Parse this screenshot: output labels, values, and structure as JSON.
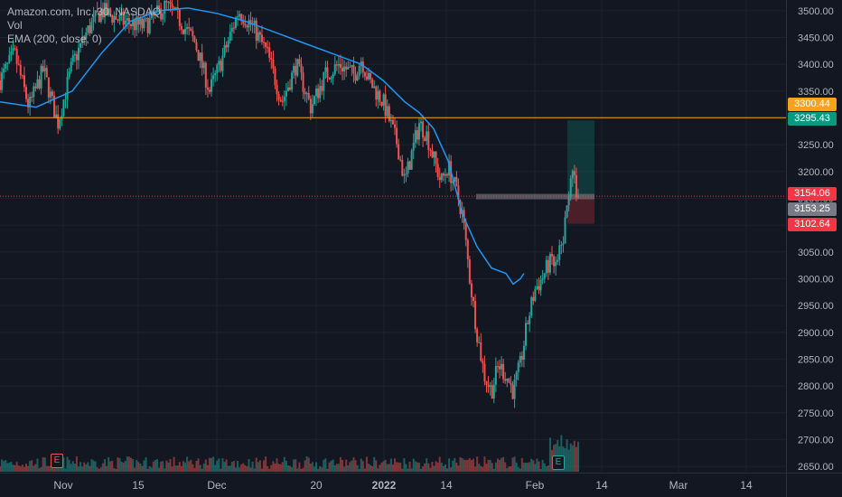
{
  "legend": {
    "symbol": "Amazon.com, Inc, 30, NASDAQ",
    "vol": "Vol",
    "ema": "EMA (200, close, 0)"
  },
  "price_axis": {
    "ticks": [
      "3500.00",
      "3450.00",
      "3400.00",
      "3350.00",
      "3300.00",
      "3250.00",
      "3200.00",
      "3150.00",
      "3100.00",
      "3050.00",
      "3000.00",
      "2950.00",
      "2900.00",
      "2850.00",
      "2800.00",
      "2750.00",
      "2700.00",
      "2650.00"
    ],
    "tick_values": [
      3500,
      3450,
      3400,
      3350,
      3300,
      3250,
      3200,
      3150,
      3100,
      3050,
      3000,
      2950,
      2900,
      2850,
      2800,
      2750,
      2700,
      2650
    ]
  },
  "price_tags": {
    "alert": "3300.44",
    "target": "3295.43",
    "last": "3154.06",
    "entry": "3153.25",
    "stop": "3102.64"
  },
  "time_axis": {
    "labels": [
      "Nov",
      "15",
      "Dec",
      "20",
      "2022",
      "14",
      "Feb",
      "14",
      "Mar",
      "14"
    ],
    "bold_label": "2022"
  },
  "colors": {
    "background": "#131722",
    "up": "#26a69a",
    "down": "#ef5350",
    "ema": "#2196f3",
    "horizontal_line": "#f7a21b",
    "alert_tag": "#f7a21b",
    "target_tag": "#089981",
    "last_tag": "#f23645",
    "entry_tag": "#787b86",
    "stop_tag": "#f23645"
  },
  "earnings_badges": [
    "E",
    "E"
  ],
  "chart_data": {
    "type": "candlestick",
    "title": "Amazon.com, Inc, 30, NASDAQ",
    "ylim": [
      2640,
      3520
    ],
    "indicators": [
      "Vol",
      "EMA (200, close, 0)"
    ],
    "horizontal_line": 3300.44,
    "position": {
      "entry": 3153.25,
      "target": 3295.43,
      "stop": 3102.64
    },
    "last_price": 3154.06,
    "price_path": [
      [
        0.0,
        3370
      ],
      [
        0.02,
        3420
      ],
      [
        0.04,
        3320
      ],
      [
        0.06,
        3390
      ],
      [
        0.08,
        3290
      ],
      [
        0.1,
        3400
      ],
      [
        0.12,
        3460
      ],
      [
        0.14,
        3500
      ],
      [
        0.17,
        3480
      ],
      [
        0.2,
        3470
      ],
      [
        0.23,
        3510
      ],
      [
        0.25,
        3480
      ],
      [
        0.27,
        3440
      ],
      [
        0.29,
        3350
      ],
      [
        0.31,
        3420
      ],
      [
        0.33,
        3500
      ],
      [
        0.35,
        3470
      ],
      [
        0.37,
        3420
      ],
      [
        0.39,
        3330
      ],
      [
        0.41,
        3400
      ],
      [
        0.43,
        3320
      ],
      [
        0.45,
        3380
      ],
      [
        0.47,
        3400
      ],
      [
        0.49,
        3380
      ],
      [
        0.5,
        3410
      ],
      [
        0.51,
        3370
      ],
      [
        0.53,
        3330
      ],
      [
        0.55,
        3250
      ],
      [
        0.56,
        3180
      ],
      [
        0.58,
        3290
      ],
      [
        0.59,
        3270
      ],
      [
        0.61,
        3180
      ],
      [
        0.62,
        3210
      ],
      [
        0.63,
        3170
      ],
      [
        0.64,
        3120
      ],
      [
        0.65,
        3000
      ],
      [
        0.66,
        2900
      ],
      [
        0.67,
        2820
      ],
      [
        0.68,
        2790
      ],
      [
        0.69,
        2840
      ],
      [
        0.7,
        2820
      ],
      [
        0.71,
        2790
      ],
      [
        0.72,
        2840
      ],
      [
        0.73,
        2920
      ],
      [
        0.74,
        2980
      ],
      [
        0.75,
        3000
      ],
      [
        0.76,
        3030
      ],
      [
        0.77,
        3020
      ],
      [
        0.78,
        3080
      ],
      [
        0.79,
        3200
      ],
      [
        0.8,
        3154
      ]
    ],
    "ema_path": [
      [
        0.0,
        3330
      ],
      [
        0.05,
        3320
      ],
      [
        0.1,
        3350
      ],
      [
        0.14,
        3420
      ],
      [
        0.18,
        3480
      ],
      [
        0.22,
        3500
      ],
      [
        0.26,
        3505
      ],
      [
        0.3,
        3495
      ],
      [
        0.34,
        3480
      ],
      [
        0.38,
        3460
      ],
      [
        0.42,
        3440
      ],
      [
        0.46,
        3420
      ],
      [
        0.5,
        3400
      ],
      [
        0.53,
        3370
      ],
      [
        0.56,
        3330
      ],
      [
        0.58,
        3310
      ],
      [
        0.6,
        3280
      ],
      [
        0.62,
        3220
      ],
      [
        0.64,
        3120
      ],
      [
        0.66,
        3060
      ],
      [
        0.68,
        3020
      ],
      [
        0.7,
        3010
      ],
      [
        0.71,
        2990
      ],
      [
        0.72,
        3000
      ],
      [
        0.725,
        3010
      ]
    ]
  }
}
